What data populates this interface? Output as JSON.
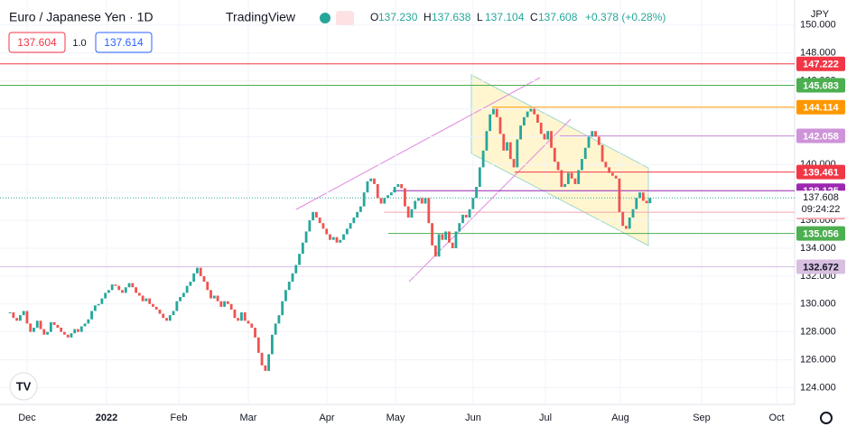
{
  "header": {
    "symbol": "Euro / Japanese Yen · 1D",
    "brand": "TradingView",
    "ohlc": [
      {
        "label": "O",
        "value": "137.230"
      },
      {
        "label": "H",
        "value": "137.638"
      },
      {
        "label": "L",
        "value": "137.104"
      },
      {
        "label": "C",
        "value": "137.608"
      }
    ],
    "change": "+0.378 (+0.28%)",
    "bid": "137.604",
    "spread": "1.0",
    "ask": "137.614"
  },
  "chart_data": {
    "type": "candlestick",
    "currency": "JPY",
    "x_labels": [
      "Dec",
      "2022",
      "Feb",
      "Mar",
      "Apr",
      "May",
      "Jun",
      "Jul",
      "Aug",
      "Sep",
      "Oct"
    ],
    "closes": [
      129.4,
      129.0,
      128.8,
      129.2,
      129.5,
      128.6,
      128.0,
      128.3,
      128.8,
      128.2,
      127.8,
      128.0,
      128.7,
      128.5,
      128.3,
      128.0,
      127.8,
      127.6,
      127.9,
      128.2,
      128.0,
      128.4,
      128.6,
      128.9,
      129.5,
      129.9,
      130.0,
      130.4,
      130.8,
      131.0,
      131.4,
      131.3,
      131.0,
      130.8,
      131.2,
      131.5,
      131.2,
      130.8,
      130.6,
      130.2,
      130.4,
      130.0,
      129.8,
      129.6,
      129.3,
      129.0,
      128.8,
      129.2,
      129.5,
      130.2,
      130.5,
      130.8,
      131.3,
      131.6,
      132.2,
      132.6,
      132.0,
      131.6,
      131.0,
      130.4,
      130.6,
      130.2,
      129.8,
      130.2,
      130.0,
      129.6,
      129.0,
      128.8,
      129.4,
      128.8,
      128.6,
      128.3,
      127.6,
      126.5,
      125.6,
      125.2,
      126.4,
      127.8,
      128.6,
      129.2,
      130.2,
      131.0,
      131.6,
      132.2,
      132.8,
      133.6,
      134.4,
      135.2,
      136.0,
      136.6,
      136.2,
      135.8,
      135.4,
      135.0,
      134.6,
      134.8,
      134.4,
      134.6,
      135.0,
      135.4,
      135.8,
      136.2,
      136.6,
      137.0,
      138.0,
      138.8,
      139.0,
      138.6,
      137.6,
      137.2,
      137.6,
      137.8,
      138.0,
      138.4,
      138.6,
      138.3,
      137.0,
      136.2,
      136.8,
      137.4,
      137.6,
      137.2,
      137.6,
      135.8,
      134.2,
      133.4,
      135.0,
      134.6,
      135.2,
      134.4,
      134.0,
      135.2,
      135.8,
      136.4,
      136.2,
      136.8,
      137.6,
      138.4,
      139.8,
      141.0,
      142.4,
      143.6,
      144.0,
      143.4,
      142.2,
      141.0,
      141.6,
      140.4,
      139.8,
      141.8,
      142.8,
      143.4,
      143.8,
      144.0,
      143.6,
      143.0,
      142.2,
      141.8,
      142.4,
      141.2,
      140.2,
      139.6,
      138.4,
      138.6,
      139.4,
      139.0,
      138.6,
      139.6,
      140.4,
      141.2,
      142.0,
      142.4,
      142.0,
      141.4,
      140.2,
      139.8,
      139.4,
      139.2,
      139.0,
      136.6,
      135.6,
      135.4,
      136.2,
      136.8,
      137.6,
      138.0,
      137.4,
      137.23,
      137.608
    ],
    "up_color": "#26a69a",
    "down_color": "#ef5350",
    "ylim": [
      122.8,
      151.8
    ],
    "yticks": [
      {
        "value": 124,
        "label": "124.000"
      },
      {
        "value": 126,
        "label": "126.000"
      },
      {
        "value": 128,
        "label": "128.000"
      },
      {
        "value": 130,
        "label": "130.000"
      },
      {
        "value": 132,
        "label": "132.000"
      },
      {
        "value": 134,
        "label": "134.000"
      },
      {
        "value": 136,
        "label": "136.000"
      },
      {
        "value": 138,
        "label": "138.000"
      },
      {
        "value": 140,
        "label": "140.000"
      },
      {
        "value": 142,
        "label": "142.000"
      },
      {
        "value": 144,
        "label": "144.000"
      },
      {
        "value": 146,
        "label": "146.000"
      },
      {
        "value": 148,
        "label": "148.000"
      },
      {
        "value": 150,
        "label": "150.000"
      }
    ],
    "levels": [
      {
        "value": 147.222,
        "color": "#f23645"
      },
      {
        "value": 145.683,
        "color": "#4caf50"
      },
      {
        "value": 144.114,
        "color": "#ff9800"
      },
      {
        "value": 142.058,
        "color": "#ce93d8"
      },
      {
        "value": 139.461,
        "color": "#f23645"
      },
      {
        "value": 138.125,
        "color": "#9c27b0"
      },
      {
        "value": 136.581,
        "color": "#f7a5ad"
      },
      {
        "value": 135.056,
        "color": "#4caf50"
      },
      {
        "value": 132.672,
        "color": "#d8bfe0"
      }
    ],
    "last_price": 137.608,
    "countdown": "09:24:22"
  }
}
